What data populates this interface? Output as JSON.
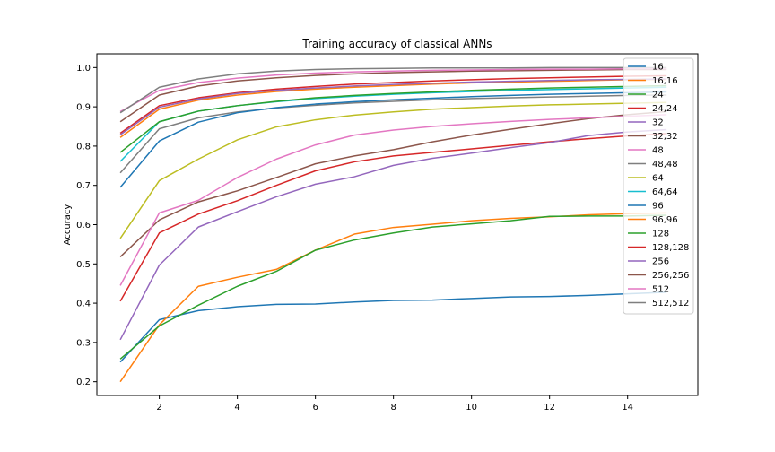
{
  "chart_data": {
    "type": "line",
    "title": "Training accuracy of classical ANNs",
    "xlabel": "",
    "ylabel": "Accuracy",
    "xlim": [
      0.4,
      15.8
    ],
    "ylim": [
      0.165,
      1.035
    ],
    "xticks": [
      2,
      4,
      6,
      8,
      10,
      12,
      14
    ],
    "yticks": [
      0.2,
      0.3,
      0.4,
      0.5,
      0.6,
      0.7,
      0.8,
      0.9,
      1.0
    ],
    "ytick_labels": [
      "0.2",
      "0.3",
      "0.4",
      "0.5",
      "0.6",
      "0.7",
      "0.8",
      "0.9",
      "1.0"
    ],
    "grid": false,
    "legend_position": "top-right",
    "x": [
      1,
      2,
      3,
      4,
      5,
      6,
      7,
      8,
      9,
      10,
      11,
      12,
      13,
      14,
      15
    ],
    "series": [
      {
        "name": "16",
        "color": "#1f77b4",
        "values": [
          0.25,
          0.358,
          0.381,
          0.391,
          0.397,
          0.398,
          0.403,
          0.407,
          0.408,
          0.412,
          0.416,
          0.417,
          0.42,
          0.424,
          0.428
        ]
      },
      {
        "name": "16,16",
        "color": "#ff7f0e",
        "values": [
          0.2,
          0.345,
          0.443,
          0.466,
          0.486,
          0.535,
          0.576,
          0.593,
          0.601,
          0.61,
          0.616,
          0.62,
          0.625,
          0.628,
          0.63
        ]
      },
      {
        "name": "24",
        "color": "#2ca02c",
        "values": [
          0.258,
          0.342,
          0.395,
          0.443,
          0.481,
          0.535,
          0.561,
          0.579,
          0.594,
          0.602,
          0.61,
          0.621,
          0.622,
          0.622,
          0.624
        ]
      },
      {
        "name": "24,24",
        "color": "#d62728",
        "values": [
          0.405,
          0.579,
          0.627,
          0.661,
          0.7,
          0.737,
          0.76,
          0.775,
          0.784,
          0.793,
          0.802,
          0.811,
          0.819,
          0.826,
          0.832
        ]
      },
      {
        "name": "32",
        "color": "#9467bd",
        "values": [
          0.307,
          0.497,
          0.594,
          0.633,
          0.671,
          0.703,
          0.722,
          0.751,
          0.769,
          0.782,
          0.796,
          0.809,
          0.827,
          0.836,
          0.842
        ]
      },
      {
        "name": "32,32",
        "color": "#8c564b",
        "values": [
          0.518,
          0.612,
          0.658,
          0.686,
          0.72,
          0.755,
          0.775,
          0.791,
          0.811,
          0.828,
          0.843,
          0.857,
          0.87,
          0.88,
          0.888
        ]
      },
      {
        "name": "48",
        "color": "#e377c2",
        "values": [
          0.445,
          0.63,
          0.662,
          0.72,
          0.767,
          0.803,
          0.828,
          0.841,
          0.85,
          0.857,
          0.863,
          0.868,
          0.872,
          0.876,
          0.88
        ]
      },
      {
        "name": "48,48",
        "color": "#7f7f7f",
        "values": [
          0.732,
          0.844,
          0.872,
          0.887,
          0.897,
          0.904,
          0.91,
          0.914,
          0.918,
          0.921,
          0.923,
          0.925,
          0.927,
          0.929,
          0.93
        ]
      },
      {
        "name": "64",
        "color": "#bcbd22",
        "values": [
          0.565,
          0.712,
          0.767,
          0.816,
          0.849,
          0.867,
          0.879,
          0.887,
          0.894,
          0.898,
          0.902,
          0.905,
          0.907,
          0.909,
          0.911
        ]
      },
      {
        "name": "64,64",
        "color": "#17becf",
        "values": [
          0.761,
          0.862,
          0.889,
          0.903,
          0.913,
          0.921,
          0.927,
          0.932,
          0.936,
          0.939,
          0.942,
          0.944,
          0.946,
          0.948,
          0.95
        ]
      },
      {
        "name": "96",
        "color": "#1f77b4",
        "values": [
          0.695,
          0.813,
          0.861,
          0.885,
          0.898,
          0.907,
          0.913,
          0.918,
          0.922,
          0.926,
          0.929,
          0.932,
          0.934,
          0.936,
          0.938
        ]
      },
      {
        "name": "96,96",
        "color": "#ff7f0e",
        "values": [
          0.822,
          0.894,
          0.917,
          0.93,
          0.939,
          0.945,
          0.95,
          0.954,
          0.958,
          0.961,
          0.963,
          0.965,
          0.967,
          0.969,
          0.97
        ]
      },
      {
        "name": "128",
        "color": "#2ca02c",
        "values": [
          0.784,
          0.862,
          0.889,
          0.903,
          0.914,
          0.923,
          0.929,
          0.934,
          0.938,
          0.942,
          0.945,
          0.948,
          0.95,
          0.952,
          0.954
        ]
      },
      {
        "name": "128,128",
        "color": "#d62728",
        "values": [
          0.833,
          0.903,
          0.923,
          0.936,
          0.945,
          0.952,
          0.958,
          0.962,
          0.966,
          0.969,
          0.972,
          0.974,
          0.976,
          0.978,
          0.979
        ]
      },
      {
        "name": "256",
        "color": "#9467bd",
        "values": [
          0.829,
          0.899,
          0.92,
          0.934,
          0.942,
          0.948,
          0.953,
          0.957,
          0.96,
          0.963,
          0.965,
          0.967,
          0.969,
          0.97,
          0.971
        ]
      },
      {
        "name": "256,256",
        "color": "#8c564b",
        "values": [
          0.862,
          0.93,
          0.953,
          0.966,
          0.974,
          0.98,
          0.984,
          0.987,
          0.989,
          0.991,
          0.992,
          0.993,
          0.994,
          0.995,
          0.995
        ]
      },
      {
        "name": "512",
        "color": "#e377c2",
        "values": [
          0.888,
          0.942,
          0.962,
          0.973,
          0.981,
          0.986,
          0.989,
          0.991,
          0.993,
          0.994,
          0.995,
          0.996,
          0.996,
          0.997,
          0.997
        ]
      },
      {
        "name": "512,512",
        "color": "#7f7f7f",
        "values": [
          0.885,
          0.95,
          0.971,
          0.984,
          0.991,
          0.995,
          0.997,
          0.998,
          0.999,
          0.999,
          0.999,
          1.0,
          1.0,
          1.0,
          1.0
        ]
      }
    ]
  }
}
